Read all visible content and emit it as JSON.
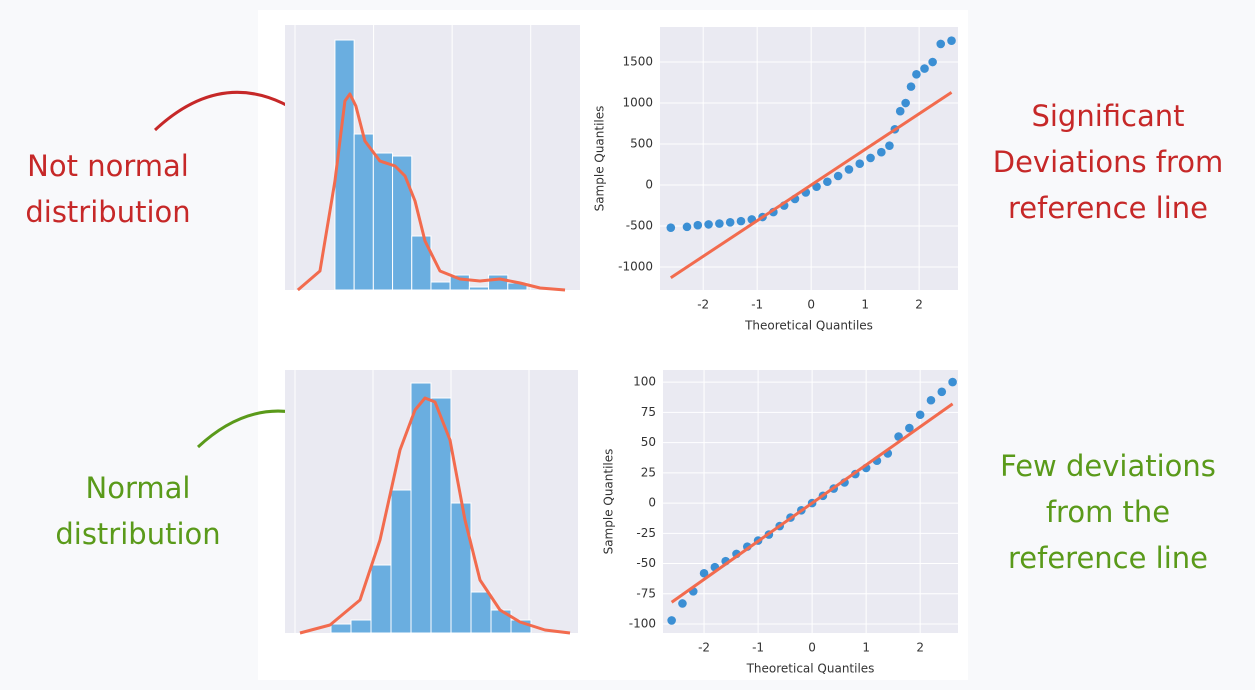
{
  "chart_data": [
    {
      "type": "histogram",
      "bins": [
        0,
        1,
        2,
        3,
        4,
        5,
        6,
        7,
        8,
        9,
        10
      ],
      "values": [
        25,
        15.6,
        13.7,
        13.4,
        5.4,
        0.8,
        1.5,
        0.3,
        1.5,
        0.7
      ],
      "color": "#6aaee0",
      "xlim": [
        -2.6,
        12.76
      ],
      "ylim": [
        0,
        26.5
      ],
      "grid": true,
      "kde": {
        "color": "#f26b4e",
        "x": [
          -1.93,
          -0.78,
          0,
          0.52,
          0.78,
          1.09,
          1.56,
          2.34,
          3.13,
          3.65,
          4.17,
          4.69,
          5.47,
          6.51,
          7.55,
          8.59,
          9.64,
          10.68,
          11.98
        ],
        "values": [
          0,
          1.9,
          10.9,
          18.9,
          19.6,
          18.4,
          14.9,
          12.9,
          12.4,
          11.4,
          8.9,
          4.9,
          1.9,
          1.1,
          0.9,
          1.1,
          0.7,
          0.2,
          0
        ]
      }
    },
    {
      "type": "scatter",
      "xlabel": "Theoretical Quantiles",
      "ylabel": "Sample Quantiles",
      "color": "#3b8fd4",
      "grid": true,
      "xlim": [
        -2.8,
        2.72
      ],
      "ylim": [
        -1280,
        1927
      ],
      "xticks": [
        -2,
        -1,
        0,
        1,
        2
      ],
      "yticks": [
        -1000,
        -500,
        0,
        500,
        1000,
        1500
      ],
      "x": [
        -2.6,
        -2.3,
        -2.1,
        -1.9,
        -1.7,
        -1.5,
        -1.3,
        -1.1,
        -0.9,
        -0.7,
        -0.5,
        -0.3,
        -0.1,
        0.1,
        0.3,
        0.5,
        0.7,
        0.9,
        1.1,
        1.3,
        1.45,
        1.55,
        1.65,
        1.75,
        1.85,
        1.95,
        2.1,
        2.25,
        2.4,
        2.6
      ],
      "values": [
        -520,
        -510,
        -490,
        -480,
        -470,
        -455,
        -440,
        -420,
        -390,
        -330,
        -250,
        -170,
        -90,
        -20,
        40,
        110,
        190,
        260,
        330,
        400,
        480,
        680,
        900,
        1000,
        1200,
        1350,
        1420,
        1500,
        1720,
        1760
      ],
      "line": {
        "color": "#f26b4e",
        "x": [
          -2.6,
          2.6
        ],
        "values": [
          -1130,
          1130
        ]
      }
    },
    {
      "type": "histogram",
      "bins": [
        0,
        1,
        2,
        3,
        4,
        5,
        6,
        7,
        8,
        9,
        10
      ],
      "values": [
        0.9,
        1.3,
        6.8,
        14.3,
        25,
        23.5,
        13,
        4.1,
        2.3,
        1.3
      ],
      "color": "#6aaee0",
      "xlim": [
        -2.3,
        12.35
      ],
      "ylim": [
        0,
        26.3
      ],
      "grid": true,
      "kde": {
        "color": "#f26b4e",
        "x": [
          -1.55,
          -0.05,
          1.45,
          2.45,
          3.45,
          4.2,
          4.7,
          5.2,
          5.95,
          6.7,
          7.45,
          8.45,
          9.45,
          10.7,
          11.95
        ],
        "values": [
          0,
          0.8,
          3.3,
          9.3,
          18.3,
          22.3,
          23.5,
          23.1,
          19.3,
          11.3,
          5.3,
          2.3,
          1.1,
          0.3,
          0
        ]
      }
    },
    {
      "type": "scatter",
      "xlabel": "Theoretical Quantiles",
      "ylabel": "Sample Quantiles",
      "color": "#3b8fd4",
      "grid": true,
      "xlim": [
        -2.76,
        2.7
      ],
      "ylim": [
        -107.4,
        110
      ],
      "xticks": [
        -2,
        -1,
        0,
        1,
        2
      ],
      "yticks": [
        -100,
        -75,
        -50,
        -25,
        0,
        25,
        50,
        75,
        100
      ],
      "x": [
        -2.6,
        -2.4,
        -2.2,
        -2.0,
        -1.8,
        -1.6,
        -1.4,
        -1.2,
        -1.0,
        -0.8,
        -0.6,
        -0.4,
        -0.2,
        0,
        0.2,
        0.4,
        0.6,
        0.8,
        1.0,
        1.2,
        1.4,
        1.6,
        1.8,
        2.0,
        2.2,
        2.4,
        2.6
      ],
      "values": [
        -97,
        -83,
        -73,
        -58,
        -53,
        -48,
        -42,
        -36,
        -31,
        -26,
        -19,
        -12,
        -6,
        0,
        6,
        12,
        17,
        24,
        29,
        35,
        41,
        55,
        62,
        73,
        85,
        92,
        100
      ],
      "line": {
        "color": "#f26b4e",
        "x": [
          -2.6,
          2.6
        ],
        "values": [
          -82,
          82
        ]
      }
    }
  ],
  "annotations": [
    {
      "lines": [
        "Not normal",
        "distribution"
      ],
      "color": "#c62828"
    },
    {
      "lines": [
        "Significant",
        "Deviations from",
        "reference line"
      ],
      "color": "#c62828"
    },
    {
      "lines": [
        "Normal",
        "distribution"
      ],
      "color": "#5a9a1a"
    },
    {
      "lines": [
        "Few deviations",
        "from the",
        "reference line"
      ],
      "color": "#5a9a1a"
    }
  ]
}
